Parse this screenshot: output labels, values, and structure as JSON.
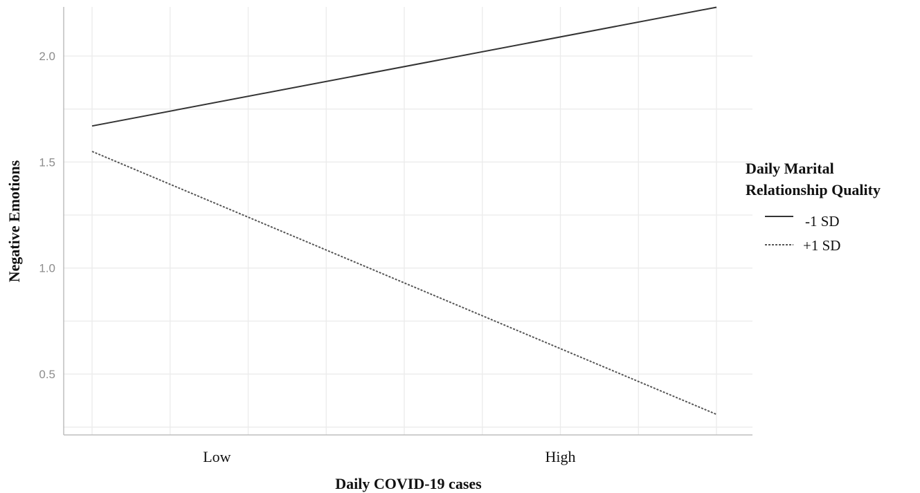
{
  "chart_data": {
    "type": "line",
    "xlabel": "Daily COVID-19 cases",
    "ylabel": "Negative Emotions",
    "x_categories": [
      "Low",
      "High"
    ],
    "x_range": [
      0,
      1
    ],
    "ylim": [
      0.25,
      2.25
    ],
    "y_ticks": [
      0.5,
      1.0,
      1.5,
      2.0
    ],
    "y_tick_labels": [
      "0.5",
      "1.0",
      "1.5",
      "2.0"
    ],
    "grid": true,
    "legend": {
      "title_line1": "Daily Marital",
      "title_line2": "Relationship Quality",
      "placement": "right"
    },
    "series": [
      {
        "name": "-1 SD",
        "style": "solid",
        "color": "#333333",
        "x": [
          0,
          1
        ],
        "y": [
          1.67,
          2.23
        ]
      },
      {
        "name": "+1 SD",
        "style": "dotted",
        "color": "#555555",
        "x": [
          0,
          1
        ],
        "y": [
          1.55,
          0.31
        ]
      }
    ]
  }
}
